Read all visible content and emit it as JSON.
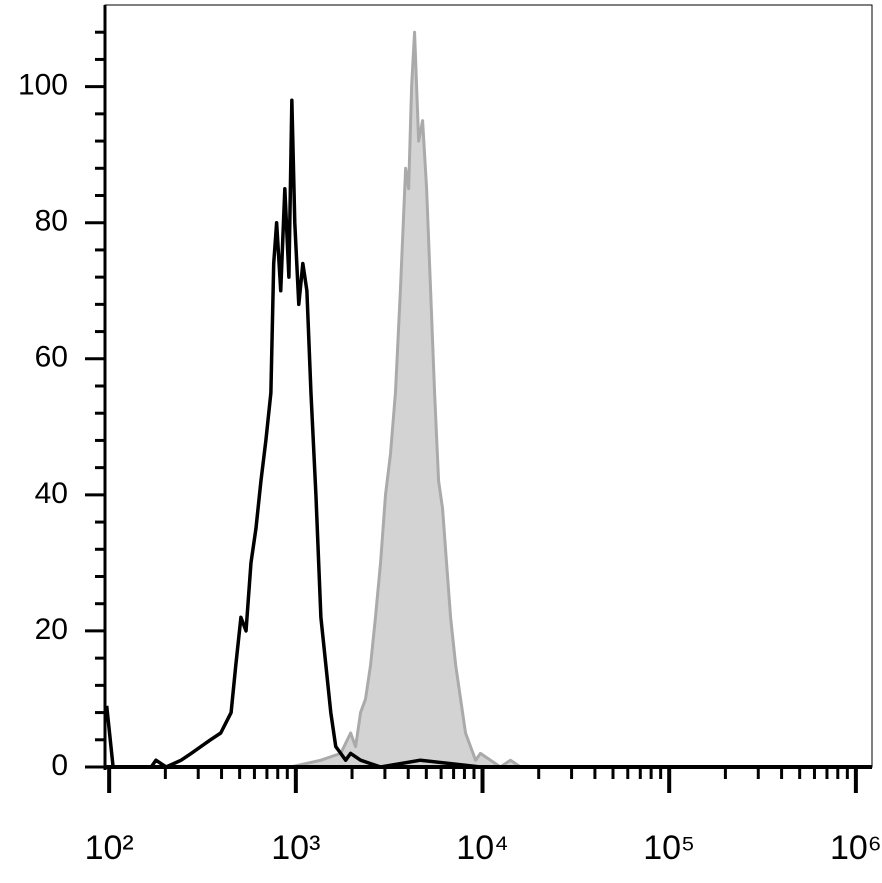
{
  "chart_data": {
    "type": "histogram-overlay",
    "xscale": "log",
    "xlim": [
      95,
      1220000
    ],
    "ylim": [
      0,
      112
    ],
    "yticks": [
      0,
      20,
      40,
      60,
      80,
      100
    ],
    "yminorticks": [
      4,
      8,
      12,
      16,
      24,
      28,
      32,
      36,
      44,
      48,
      52,
      56,
      64,
      68,
      72,
      76,
      84,
      88,
      92,
      96,
      104,
      108
    ],
    "xticks": [
      {
        "value": 100,
        "label": "10²"
      },
      {
        "value": 1000,
        "label": "10³"
      },
      {
        "value": 10000,
        "label": "10⁴"
      },
      {
        "value": 100000,
        "label": "10⁵"
      },
      {
        "value": 1000000,
        "label": "10⁶"
      }
    ],
    "xminorticks": [
      200,
      300,
      400,
      500,
      600,
      700,
      800,
      900,
      2000,
      3000,
      4000,
      5000,
      6000,
      7000,
      8000,
      9000,
      20000,
      30000,
      40000,
      50000,
      60000,
      70000,
      80000,
      90000,
      200000,
      300000,
      400000,
      500000,
      600000,
      700000,
      800000,
      900000
    ],
    "series": [
      {
        "color": "#aaaaaa",
        "fill": "#d3d3d3",
        "x": [
          100,
          937,
          1362,
          1740,
          1966,
          2090,
          2222,
          2362,
          2514,
          2670,
          2843,
          3022,
          3213,
          3416,
          3631,
          3873,
          4020,
          4170,
          4325,
          4549,
          4775,
          5018,
          5272,
          5537,
          5818,
          6109,
          6417,
          6745,
          7178,
          7629,
          8110,
          8630,
          9180,
          9750,
          11040,
          12470,
          14120,
          15970
        ],
        "values": [
          0,
          0,
          1,
          2,
          5,
          3,
          8,
          10,
          15,
          22,
          30,
          40,
          46,
          55,
          70,
          88,
          85,
          100,
          108,
          92,
          95,
          85,
          70,
          55,
          42,
          38,
          30,
          22,
          15,
          10,
          5,
          3,
          1,
          2,
          1,
          0,
          1,
          0
        ]
      },
      {
        "color": "#000000",
        "x": [
          97,
          105,
          168,
          178,
          202,
          243,
          275,
          310,
          349,
          396,
          450,
          477,
          508,
          541,
          575,
          611,
          650,
          691,
          735,
          761,
          789,
          830,
          873,
          918,
          952,
          987,
          1037,
          1090,
          1146,
          1205,
          1281,
          1362,
          1448,
          1539,
          1636,
          1740,
          1849,
          1966,
          2222,
          2514,
          2843,
          4645,
          9769,
          1220000
        ],
        "values": [
          9,
          0,
          0,
          1,
          0,
          1,
          2,
          3,
          4,
          5,
          8,
          15,
          22,
          20,
          30,
          35,
          42,
          48,
          55,
          74,
          80,
          70,
          85,
          72,
          98,
          80,
          68,
          74,
          70,
          55,
          40,
          22,
          15,
          8,
          3,
          2,
          1,
          2,
          1,
          0.5,
          0,
          1,
          0,
          0
        ]
      }
    ]
  }
}
